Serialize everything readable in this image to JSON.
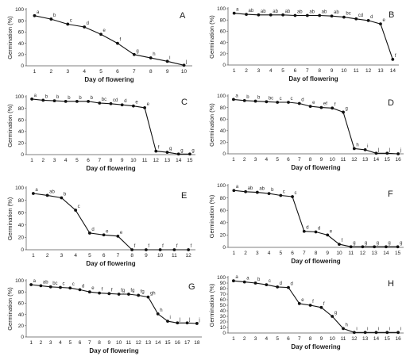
{
  "chart_data": [
    {
      "panel_label": "A",
      "type": "line",
      "xlabel": "Day of flowering",
      "ylabel": "Germination (%)",
      "ylim": [
        0,
        100
      ],
      "yticks": [
        0,
        20,
        40,
        60,
        80,
        100
      ],
      "x": [
        1,
        2,
        3,
        4,
        5,
        6,
        7,
        8,
        9,
        10
      ],
      "values": [
        89,
        83,
        74,
        69,
        56,
        40,
        20,
        14,
        8,
        1
      ],
      "letters": [
        "a",
        "b",
        "c",
        "d",
        "e",
        "f",
        "g",
        "h",
        "i",
        "j"
      ]
    },
    {
      "panel_label": "B",
      "type": "line",
      "xlabel": "Day of flowering",
      "ylabel": "Germination (%)",
      "ylim": [
        0,
        100
      ],
      "yticks": [
        0,
        20,
        40,
        60,
        80,
        100
      ],
      "x": [
        1,
        2,
        3,
        4,
        5,
        6,
        7,
        8,
        9,
        10,
        11,
        12,
        13,
        14
      ],
      "values": [
        92,
        90,
        89,
        89,
        89,
        88,
        88,
        88,
        87,
        85,
        82,
        79,
        73,
        10
      ],
      "letters": [
        "a",
        "ab",
        "ab",
        "ab",
        "ab",
        "ab",
        "ab",
        "ab",
        "ab",
        "bc",
        "cd",
        "d",
        "e",
        "f"
      ]
    },
    {
      "panel_label": "C",
      "type": "line",
      "xlabel": "Day of flowering",
      "ylabel": "Germination (%)",
      "ylim": [
        0,
        100
      ],
      "yticks": [
        0,
        20,
        40,
        60,
        80,
        100
      ],
      "x": [
        1,
        2,
        3,
        4,
        5,
        6,
        7,
        8,
        9,
        10,
        11,
        12,
        13,
        14,
        15
      ],
      "values": [
        96,
        94,
        93,
        92,
        92,
        92,
        89,
        88,
        86,
        84,
        81,
        6,
        4,
        1,
        1
      ],
      "letters": [
        "a",
        "b",
        "b",
        "b",
        "b",
        "b",
        "bc",
        "cd",
        "d",
        "e",
        "e",
        "f",
        "g",
        "g",
        "g"
      ]
    },
    {
      "panel_label": "D",
      "type": "line",
      "xlabel": "Day of flowering",
      "ylabel": "Germination (%)",
      "ylim": [
        0,
        100
      ],
      "yticks": [
        0,
        20,
        40,
        60,
        80,
        100
      ],
      "x": [
        1,
        2,
        3,
        4,
        5,
        6,
        7,
        8,
        9,
        10,
        11,
        12,
        13,
        14,
        15,
        16
      ],
      "values": [
        94,
        92,
        91,
        90,
        89,
        89,
        87,
        82,
        80,
        79,
        72,
        9,
        7,
        1,
        1,
        0
      ],
      "letters": [
        "a",
        "b",
        "b",
        "bc",
        "c",
        "c",
        "d",
        "e",
        "ef",
        "f",
        "g",
        "h",
        "i",
        "j",
        "j",
        "j"
      ]
    },
    {
      "panel_label": "E",
      "type": "line",
      "xlabel": "Day of flowering",
      "ylabel": "Germination (%)",
      "ylim": [
        0,
        100
      ],
      "yticks": [
        0,
        20,
        40,
        60,
        80,
        100
      ],
      "x": [
        1,
        2,
        3,
        4,
        5,
        6,
        7,
        8,
        9,
        10,
        11,
        12
      ],
      "values": [
        91,
        88,
        84,
        64,
        27,
        24,
        22,
        0,
        0,
        0,
        0,
        0
      ],
      "letters": [
        "a",
        "ab",
        "b",
        "c",
        "d",
        "e",
        "e",
        "f",
        "f",
        "f",
        "f",
        "f"
      ]
    },
    {
      "panel_label": "F",
      "type": "line",
      "xlabel": "Day of flowering",
      "ylabel": "Germination (%)",
      "ylim": [
        0,
        100
      ],
      "yticks": [
        0,
        20,
        40,
        60,
        80,
        100
      ],
      "x": [
        1,
        2,
        3,
        4,
        5,
        6,
        7,
        8,
        9,
        10,
        11,
        12,
        13,
        14,
        15
      ],
      "values": [
        92,
        90,
        89,
        87,
        84,
        82,
        26,
        25,
        20,
        5,
        1,
        1,
        1,
        1,
        1
      ],
      "letters": [
        "a",
        "ab",
        "ab",
        "b",
        "c",
        "c",
        "d",
        "d",
        "e",
        "f",
        "g",
        "g",
        "g",
        "g",
        "g"
      ]
    },
    {
      "panel_label": "G",
      "type": "line",
      "xlabel": "Day of flowering",
      "ylabel": "Germination (%)",
      "ylim": [
        0,
        100
      ],
      "yticks": [
        0,
        20,
        40,
        60,
        80,
        100
      ],
      "x": [
        1,
        2,
        3,
        4,
        5,
        6,
        7,
        8,
        9,
        10,
        11,
        12,
        13,
        14,
        15,
        16,
        17,
        18
      ],
      "values": [
        93,
        91,
        89,
        88,
        87,
        84,
        80,
        78,
        77,
        76,
        76,
        74,
        71,
        41,
        28,
        25,
        25,
        24
      ],
      "letters": [
        "a",
        "ab",
        "bc",
        "c",
        "c",
        "d",
        "e",
        "f",
        "f",
        "fg",
        "fg",
        "fg",
        "gh",
        "h",
        "i",
        "j",
        "j",
        "j"
      ]
    },
    {
      "panel_label": "H",
      "type": "line",
      "xlabel": "Day of flowering",
      "ylabel": "Germination (%)",
      "ylim": [
        0,
        100
      ],
      "yticks": [
        0,
        10,
        20,
        30,
        40,
        50,
        60,
        70,
        80,
        90,
        100
      ],
      "x": [
        1,
        2,
        3,
        4,
        5,
        6,
        7,
        8,
        9,
        10,
        11,
        12,
        13,
        14,
        15,
        16
      ],
      "values": [
        94,
        92,
        90,
        87,
        83,
        82,
        53,
        50,
        46,
        30,
        8,
        1,
        1,
        1,
        1,
        1
      ],
      "letters": [
        "a",
        "a",
        "b",
        "c",
        "d",
        "d",
        "e",
        "f",
        "f",
        "g",
        "h",
        "i",
        "i",
        "i",
        "i",
        "i"
      ]
    }
  ]
}
